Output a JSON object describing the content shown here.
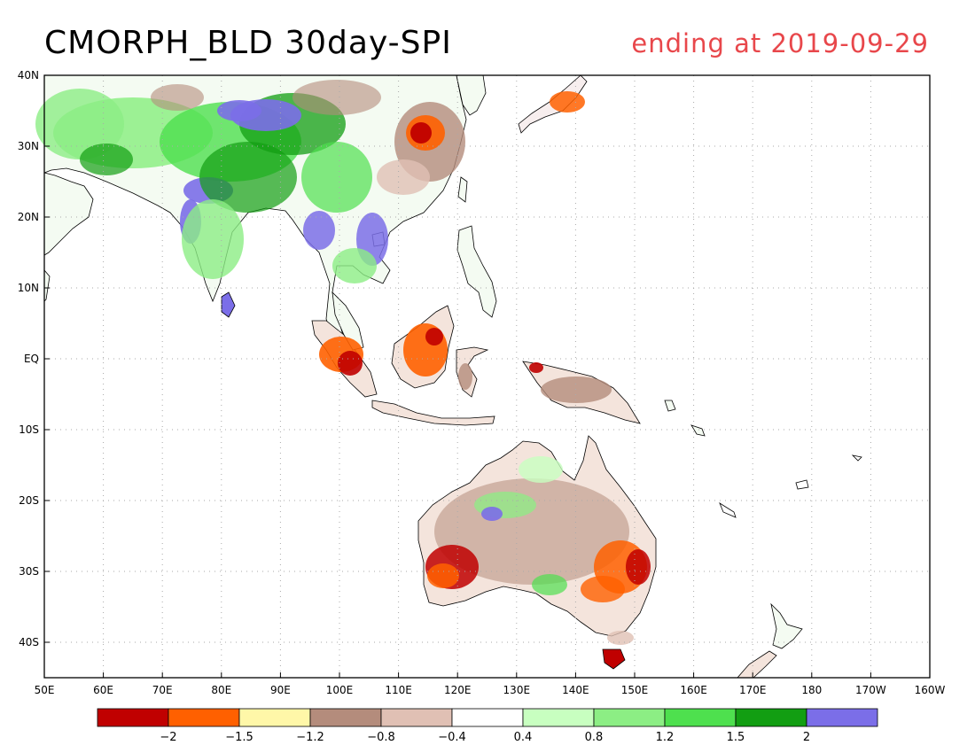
{
  "title": "CMORPH_BLD 30day-SPI",
  "subtitle": "ending at 2019-09-29",
  "axes": {
    "lat_labels": [
      "40N",
      "30N",
      "20N",
      "10N",
      "EQ",
      "10S",
      "20S",
      "30S",
      "40S"
    ],
    "lon_labels": [
      "50E",
      "60E",
      "70E",
      "80E",
      "90E",
      "100E",
      "110E",
      "120E",
      "130E",
      "140E",
      "150E",
      "160E",
      "170E",
      "180",
      "170W",
      "160W"
    ]
  },
  "legend": {
    "colors": [
      "#c00000",
      "#ff6000",
      "#fff7a8",
      "#b48c7c",
      "#e0c0b4",
      "#ffffff",
      "#c8ffc0",
      "#8cee84",
      "#4ee04e",
      "#129e12",
      "#7b6ee8"
    ],
    "labels": [
      "-2",
      "-1.5",
      "-1.2",
      "-0.8",
      "-0.4",
      "0.4",
      "0.8",
      "1.2",
      "1.5",
      "2"
    ]
  },
  "colors": {
    "subtitle": "#e8474b",
    "gridline": "#aaaaaa"
  }
}
